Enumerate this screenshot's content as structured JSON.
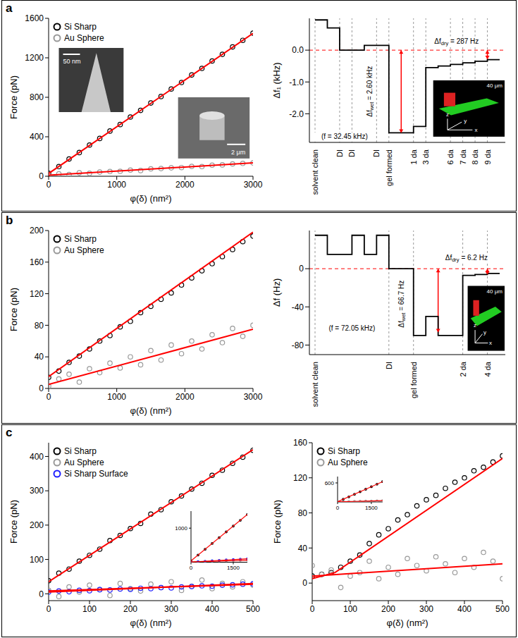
{
  "chart_data": [
    {
      "type": "scatter",
      "panel": "a",
      "xlabel": "φ(δ) (nm²)",
      "ylabel": "Force (pN)",
      "xlim": [
        0,
        3000
      ],
      "xticks": [
        0,
        1000,
        2000,
        3000
      ],
      "ylim": [
        0,
        1600
      ],
      "yticks": [
        0,
        400,
        800,
        1200,
        1600
      ],
      "legend": "upper left",
      "series": [
        {
          "name": "Si Sharp",
          "color": "#000000",
          "marker": "circle",
          "x": [
            0,
            150,
            300,
            450,
            600,
            750,
            900,
            1050,
            1200,
            1350,
            1500,
            1650,
            1800,
            1950,
            2100,
            2250,
            2400,
            2550,
            2700,
            2850,
            3000
          ],
          "values": [
            30,
            98,
            175,
            240,
            316,
            383,
            458,
            524,
            600,
            667,
            742,
            808,
            884,
            950,
            1026,
            1093,
            1168,
            1235,
            1310,
            1377,
            1450
          ]
        },
        {
          "name": "Au Sphere",
          "color": "#999999",
          "marker": "circle",
          "x": [
            0,
            150,
            300,
            450,
            600,
            750,
            900,
            1050,
            1200,
            1350,
            1500,
            1650,
            1800,
            1950,
            2100,
            2250,
            2400,
            2550,
            2700,
            2850,
            3000
          ],
          "values": [
            12,
            25,
            18,
            35,
            30,
            42,
            48,
            50,
            62,
            58,
            75,
            78,
            85,
            88,
            100,
            98,
            112,
            115,
            125,
            130,
            135
          ]
        },
        {
          "type": "line",
          "color": "#ff0000",
          "x": [
            0,
            3000
          ],
          "values": [
            28,
            1448
          ]
        },
        {
          "type": "line",
          "color": "#ff0000",
          "x": [
            0,
            3000
          ],
          "values": [
            10,
            135
          ]
        }
      ],
      "images": [
        {
          "scale_label": "50 nm"
        },
        {
          "scale_label": "2 μm"
        }
      ]
    },
    {
      "type": "line",
      "line_style": "step",
      "ylabel": "Δf₁ (kHz)",
      "color": "#000000",
      "categories": [
        "solvent clean",
        null,
        "DI",
        "DI",
        null,
        "DI",
        "gel formed",
        null,
        "1 da",
        "3 da",
        null,
        "6 da",
        "7 da",
        "8 da",
        "9 da",
        null
      ],
      "values": [
        0.95,
        0.7,
        0.0,
        0.0,
        0.15,
        0.15,
        -2.6,
        -2.6,
        -2.4,
        -0.55,
        -0.5,
        -0.45,
        -0.4,
        -0.35,
        -0.3,
        -0.3
      ],
      "ylim": [
        -2.9,
        1
      ],
      "yticks": [
        {
          "value": 0,
          "label": "0.0"
        },
        {
          "value": -1,
          "label": "-1.0"
        },
        {
          "value": -2,
          "label": "-2.0"
        }
      ],
      "grid": true,
      "reference_line": {
        "y": 0,
        "color": "#ff0000",
        "line_style": "dashed"
      },
      "brackets": [
        {
          "label": "Δfwet = 2.60 kHz",
          "from": 0,
          "to": -2.6,
          "color": "#ff0000"
        },
        {
          "label": "Δfdry = 287 Hz",
          "from": 0,
          "to": -0.287,
          "color": "#ff0000"
        }
      ],
      "annotations": [
        "(f = 32.45 kHz)"
      ],
      "inset": {
        "scale_label": "40 μm",
        "axis_labels": [
          "x",
          "y",
          "z"
        ]
      }
    },
    {
      "type": "scatter",
      "panel": "b",
      "xlabel": "φ(δ) (nm²)",
      "ylabel": "Force (pN)",
      "xlim": [
        0,
        3000
      ],
      "xticks": [
        0,
        1000,
        2000,
        3000
      ],
      "ylim": [
        0,
        200
      ],
      "yticks": [
        0,
        40,
        80,
        120,
        160,
        200
      ],
      "legend": "upper left",
      "series": [
        {
          "name": "Si Sharp",
          "color": "#000000",
          "marker": "circle",
          "x": [
            0,
            150,
            300,
            450,
            600,
            750,
            900,
            1050,
            1200,
            1350,
            1500,
            1650,
            1800,
            1950,
            2100,
            2250,
            2400,
            2550,
            2700,
            2850,
            3000
          ],
          "values": [
            14,
            22,
            33,
            41,
            50,
            60,
            67,
            78,
            85,
            96,
            104,
            113,
            121,
            131,
            140,
            149,
            158,
            167,
            176,
            186,
            193
          ]
        },
        {
          "name": "Au Sphere",
          "color": "#999999",
          "marker": "circle",
          "x": [
            0,
            150,
            300,
            450,
            600,
            750,
            900,
            1050,
            1200,
            1350,
            1500,
            1650,
            1800,
            1950,
            2100,
            2250,
            2400,
            2550,
            2700,
            2850,
            3000
          ],
          "values": [
            3,
            12,
            18,
            8,
            25,
            20,
            32,
            26,
            40,
            30,
            48,
            36,
            55,
            44,
            60,
            50,
            68,
            58,
            76,
            66,
            80
          ]
        },
        {
          "type": "line",
          "color": "#ff0000",
          "x": [
            0,
            3000
          ],
          "values": [
            15,
            198
          ]
        },
        {
          "type": "line",
          "color": "#ff0000",
          "x": [
            0,
            3000
          ],
          "values": [
            5,
            75
          ]
        }
      ]
    },
    {
      "type": "line",
      "line_style": "step",
      "ylabel": "Δf (Hz)",
      "color": "#000000",
      "categories": [
        "solvent clean",
        null,
        null,
        null,
        null,
        null,
        "DI",
        null,
        "gel formed",
        null,
        null,
        null,
        "2 da",
        null,
        "4 da",
        null
      ],
      "values": [
        35,
        15,
        15,
        35,
        15,
        35,
        0,
        0,
        -70,
        -50,
        -70,
        -70,
        -7,
        -6,
        -5,
        -5
      ],
      "ylim": [
        -90,
        40
      ],
      "yticks": [
        0,
        -40,
        -80
      ],
      "grid": true,
      "reference_line": {
        "y": 0,
        "color": "#ff0000",
        "line_style": "dashed"
      },
      "brackets": [
        {
          "label": "Δfwet = 66.7 Hz",
          "from": 0,
          "to": -66.7,
          "color": "#ff0000"
        },
        {
          "label": "Δfdry = 6.2 Hz",
          "from": 0,
          "to": -6.2,
          "color": "#ff0000"
        }
      ],
      "annotations": [
        "(f = 72.05 kHz)"
      ],
      "inset": {
        "scale_label": "40 μm",
        "axis_labels": [
          "x",
          "y",
          "z"
        ]
      }
    },
    {
      "type": "scatter",
      "panel": "c",
      "xlabel": "φ(δ) (nm²)",
      "ylabel": "Force (pN)",
      "xlim": [
        0,
        500
      ],
      "xticks": [
        0,
        100,
        200,
        300,
        400,
        500
      ],
      "ylim": [
        -20,
        440
      ],
      "yticks": [
        0,
        100,
        200,
        300,
        400
      ],
      "legend": "upper left",
      "series": [
        {
          "name": "Si Sharp",
          "color": "#000000",
          "marker": "circle",
          "x": [
            0,
            25,
            50,
            75,
            100,
            125,
            150,
            175,
            200,
            225,
            250,
            275,
            300,
            325,
            350,
            375,
            400,
            425,
            450,
            475,
            500
          ],
          "values": [
            38,
            60,
            72,
            95,
            112,
            130,
            155,
            170,
            190,
            205,
            232,
            245,
            268,
            285,
            305,
            322,
            345,
            360,
            380,
            398,
            418
          ]
        },
        {
          "name": "Au Sphere",
          "color": "#999999",
          "marker": "circle",
          "x": [
            0,
            25,
            50,
            75,
            100,
            125,
            150,
            175,
            200,
            225,
            250,
            275,
            300,
            325,
            350,
            375,
            400,
            425,
            450,
            475,
            500
          ],
          "values": [
            10,
            -8,
            20,
            5,
            25,
            12,
            -5,
            30,
            15,
            8,
            28,
            18,
            35,
            10,
            22,
            40,
            15,
            30,
            20,
            35,
            25
          ]
        },
        {
          "name": "Si Sharp Surface",
          "color": "#1f1fff",
          "marker": "circle",
          "x": [
            0,
            25,
            50,
            75,
            100,
            125,
            150,
            175,
            200,
            225,
            250,
            275,
            300,
            325,
            350,
            375,
            400,
            425,
            450,
            475,
            500
          ],
          "values": [
            5,
            8,
            6,
            10,
            9,
            12,
            11,
            14,
            13,
            16,
            15,
            18,
            17,
            20,
            21,
            23,
            22,
            25,
            26,
            28,
            29
          ]
        },
        {
          "type": "line",
          "color": "#ff0000",
          "x": [
            0,
            500
          ],
          "values": [
            35,
            420
          ]
        },
        {
          "type": "line",
          "color": "#ff0000",
          "x": [
            0,
            500
          ],
          "values": [
            8,
            28
          ]
        },
        {
          "type": "line",
          "color": "#ff0000",
          "x": [
            0,
            500
          ],
          "values": [
            5,
            30
          ]
        }
      ],
      "inset": {
        "xlim": [
          0,
          2000
        ],
        "xticks": [
          0,
          1500
        ],
        "ylim": [
          0,
          1500
        ],
        "yticks": [
          1000
        ],
        "series": [
          {
            "color": "#000000",
            "marker": "circle",
            "x": [
              0,
              250,
              500,
              750,
              1000,
              1250,
              1500,
              1750,
              2000
            ],
            "values": [
              40,
              210,
              380,
              550,
              720,
              890,
              1060,
              1230,
              1400
            ]
          },
          {
            "color": "#999999",
            "marker": "circle",
            "x": [
              0,
              250,
              500,
              750,
              1000,
              1250,
              1500,
              1750,
              2000
            ],
            "values": [
              10,
              15,
              20,
              28,
              35,
              42,
              50,
              55,
              60
            ]
          },
          {
            "color": "#1f1fff",
            "marker": "circle",
            "x": [
              0,
              250,
              500,
              750,
              1000,
              1250,
              1500,
              1750,
              2000
            ],
            "values": [
              5,
              18,
              30,
              42,
              55,
              68,
              80,
              90,
              100
            ]
          },
          {
            "type": "line",
            "color": "#ff0000",
            "x": [
              0,
              2000
            ],
            "values": [
              40,
              1400
            ]
          },
          {
            "type": "line",
            "color": "#ff0000",
            "x": [
              0,
              2000
            ],
            "values": [
              10,
              60
            ]
          },
          {
            "type": "line",
            "color": "#ff0000",
            "x": [
              0,
              2000
            ],
            "values": [
              5,
              100
            ]
          }
        ]
      }
    },
    {
      "type": "scatter",
      "xlabel": "φ(δ) (nm²)",
      "ylabel": "Force (pN)",
      "xlim": [
        0,
        500
      ],
      "xticks": [
        0,
        100,
        200,
        300,
        400,
        500
      ],
      "ylim": [
        -20,
        160
      ],
      "yticks": [
        0,
        40,
        80,
        120,
        160
      ],
      "legend": "upper left",
      "series": [
        {
          "name": "Si Sharp",
          "color": "#000000",
          "marker": "circle",
          "x": [
            0,
            25,
            50,
            75,
            100,
            125,
            150,
            175,
            200,
            225,
            250,
            275,
            300,
            325,
            350,
            375,
            400,
            425,
            450,
            475,
            500
          ],
          "values": [
            8,
            10,
            12,
            18,
            25,
            32,
            45,
            55,
            62,
            72,
            78,
            88,
            95,
            100,
            108,
            115,
            120,
            128,
            132,
            138,
            145
          ]
        },
        {
          "name": "Au Sphere",
          "color": "#999999",
          "marker": "circle",
          "x": [
            0,
            25,
            50,
            75,
            100,
            125,
            150,
            175,
            200,
            225,
            250,
            275,
            300,
            325,
            350,
            375,
            400,
            425,
            450,
            475,
            500
          ],
          "values": [
            20,
            10,
            15,
            -5,
            8,
            12,
            25,
            5,
            18,
            10,
            28,
            20,
            14,
            30,
            22,
            12,
            28,
            18,
            35,
            25,
            5
          ]
        },
        {
          "type": "line",
          "color": "#ff0000",
          "x": [
            0,
            60,
            500
          ],
          "values": [
            5,
            12,
            142
          ]
        },
        {
          "type": "line",
          "color": "#ff0000",
          "x": [
            0,
            500
          ],
          "values": [
            8,
            22
          ]
        }
      ],
      "inset": {
        "xlim": [
          0,
          2000
        ],
        "xticks": [
          0,
          1500
        ],
        "ylim": [
          0,
          800
        ],
        "yticks": [
          600
        ],
        "series": [
          {
            "color": "#000000",
            "marker": "circle",
            "x": [
              0,
              250,
              500,
              750,
              1000,
              1250,
              1500,
              1750,
              2000
            ],
            "values": [
              5,
              85,
              160,
              240,
              320,
              400,
              480,
              560,
              640
            ]
          },
          {
            "color": "#999999",
            "marker": "circle",
            "x": [
              0,
              250,
              500,
              750,
              1000,
              1250,
              1500,
              1750,
              2000
            ],
            "values": [
              5,
              10,
              15,
              18,
              25,
              28,
              30,
              35,
              40
            ]
          },
          {
            "type": "line",
            "color": "#ff0000",
            "x": [
              0,
              2000
            ],
            "values": [
              5,
              640
            ]
          },
          {
            "type": "line",
            "color": "#ff0000",
            "x": [
              0,
              2000
            ],
            "values": [
              5,
              40
            ]
          }
        ]
      }
    }
  ]
}
